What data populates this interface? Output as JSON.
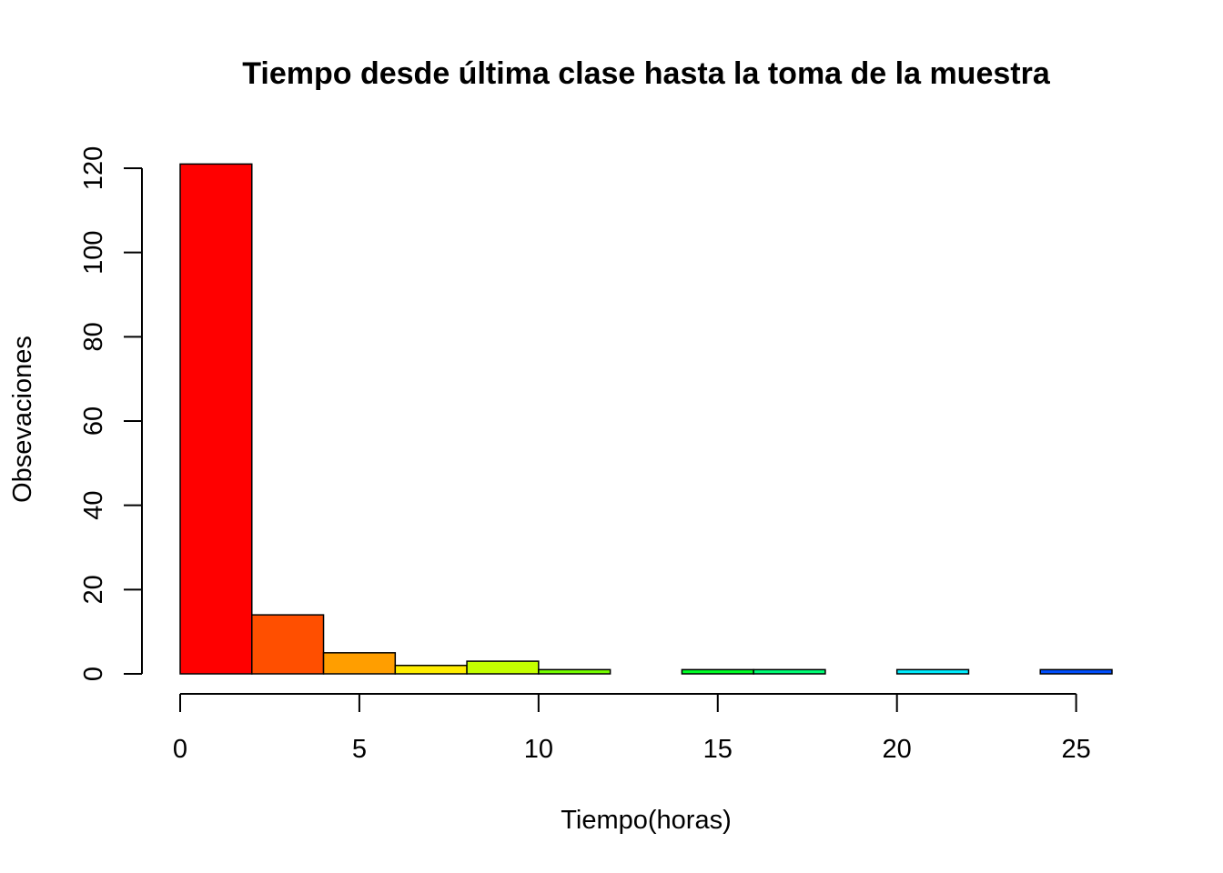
{
  "chart_data": {
    "type": "bar",
    "title": "Tiempo desde última clase hasta la toma de la muestra",
    "xlabel": "Tiempo(horas)",
    "ylabel": "Obsevaciones",
    "xlim": [
      0,
      26
    ],
    "ylim": [
      0,
      120
    ],
    "x_ticks": [
      0,
      5,
      10,
      15,
      20,
      25
    ],
    "y_ticks": [
      0,
      20,
      40,
      60,
      80,
      100,
      120
    ],
    "grid": false,
    "bins": [
      {
        "start": 0,
        "end": 2,
        "count": 121,
        "color": "#FF0000"
      },
      {
        "start": 2,
        "end": 4,
        "count": 14,
        "color": "#FF4F00"
      },
      {
        "start": 4,
        "end": 6,
        "count": 5,
        "color": "#FF9E00"
      },
      {
        "start": 6,
        "end": 8,
        "count": 2,
        "color": "#FFED00"
      },
      {
        "start": 8,
        "end": 10,
        "count": 3,
        "color": "#C4FF00"
      },
      {
        "start": 10,
        "end": 12,
        "count": 1,
        "color": "#75FF00"
      },
      {
        "start": 12,
        "end": 14,
        "count": 0,
        "color": "#27FF00"
      },
      {
        "start": 14,
        "end": 16,
        "count": 1,
        "color": "#00FF27"
      },
      {
        "start": 16,
        "end": 18,
        "count": 1,
        "color": "#00FF75"
      },
      {
        "start": 18,
        "end": 20,
        "count": 0,
        "color": "#00FFC4"
      },
      {
        "start": 20,
        "end": 22,
        "count": 1,
        "color": "#00EDFF"
      },
      {
        "start": 22,
        "end": 24,
        "count": 0,
        "color": "#009EFF"
      },
      {
        "start": 24,
        "end": 26,
        "count": 1,
        "color": "#004FFF"
      }
    ]
  }
}
